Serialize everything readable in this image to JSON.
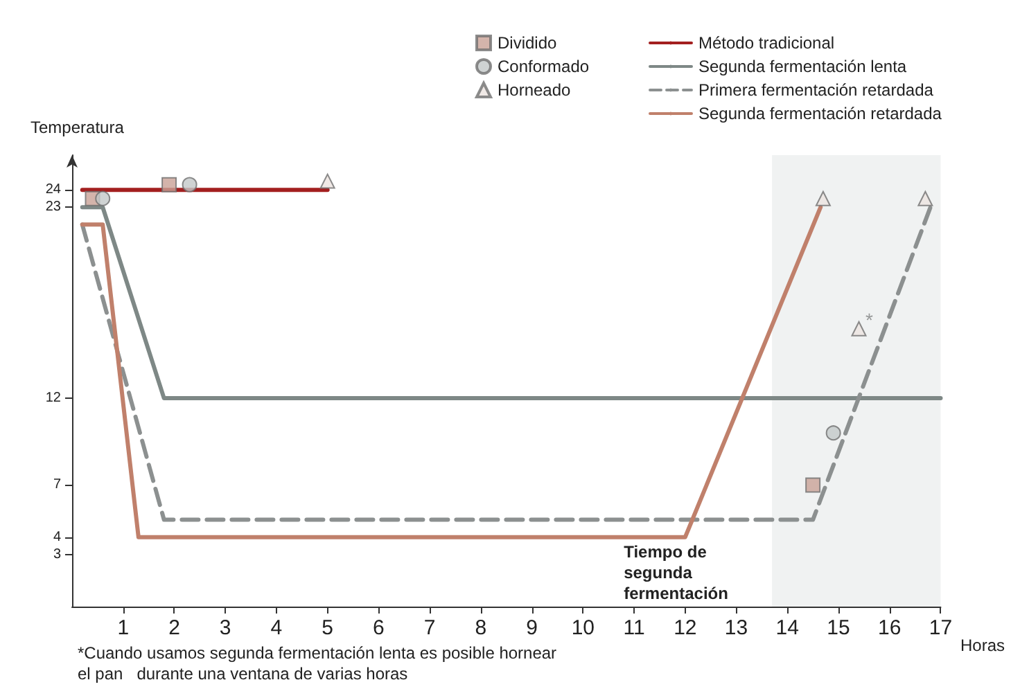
{
  "chart_data": {
    "type": "line",
    "xlabel": "Horas",
    "ylabel": "Temperatura",
    "xlim": [
      0,
      17
    ],
    "xticks": [
      1,
      2,
      3,
      4,
      5,
      6,
      7,
      8,
      9,
      10,
      11,
      12,
      13,
      14,
      15,
      16,
      17
    ],
    "ylim": [
      0,
      26
    ],
    "yticks": [
      3,
      4,
      7,
      12,
      23,
      24
    ],
    "grid": false,
    "legend": "top",
    "marker": "none",
    "tick_labels": true,
    "series": [
      {
        "name": "Dividido",
        "type": "scatter",
        "marker": "square",
        "color": "#c9a196",
        "x": [
          0.4,
          1.9,
          14.5
        ],
        "values": [
          23.5,
          24.3,
          7
        ]
      },
      {
        "name": "Conformado",
        "type": "scatter",
        "marker": "circle",
        "color": "#c3c8c8",
        "x": [
          0.6,
          2.3,
          14.9
        ],
        "values": [
          23.5,
          24.3,
          10
        ]
      },
      {
        "name": "Horneado",
        "type": "scatter",
        "marker": "triangle",
        "color": "#ece4e0",
        "x": [
          5,
          14.7,
          15.4,
          16.7
        ],
        "values": [
          24.5,
          23.5,
          16,
          23.5
        ]
      },
      {
        "name": "Método tradicional",
        "color": "#a31f1f",
        "line_style": "solid",
        "x": [
          0.2,
          5
        ],
        "values": [
          24,
          24
        ]
      },
      {
        "name": "Segunda fermentación lenta",
        "color": "#7e8886",
        "line_style": "solid",
        "x": [
          0.2,
          0.6,
          1.8,
          17
        ],
        "values": [
          23,
          23,
          12,
          12
        ]
      },
      {
        "name": "Primera fermentación retardada",
        "color": "#8c9090",
        "line_style": "dashed",
        "x": [
          0.2,
          1.8,
          14.5,
          16.8
        ],
        "values": [
          22,
          5,
          5,
          23
        ]
      },
      {
        "name": "Segunda fermentación retardada",
        "color": "#c0806b",
        "line_style": "solid",
        "x": [
          0.2,
          0.6,
          1.3,
          12,
          14.65
        ],
        "values": [
          22,
          22,
          4,
          4,
          23
        ]
      }
    ],
    "bands": [
      {
        "axis": "x",
        "from": 13.7,
        "to": 17,
        "label": "Tiempo de segunda fermentación",
        "color": "#e6e9e9"
      }
    ],
    "annotations": [
      "*",
      "*Cuando usamos segunda fermentación lenta es posible hornear el pan   durante una ventana de varias horas"
    ]
  }
}
